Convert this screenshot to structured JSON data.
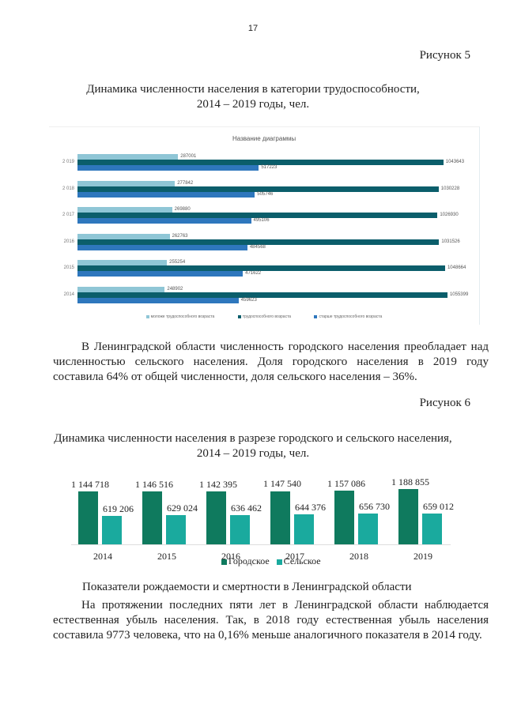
{
  "page_number": "17",
  "figure5": {
    "label": "Рисунок 5",
    "title_line1": "Динамика численности населения в категории трудоспособности,",
    "title_line2": "2014 – 2019 годы, чел."
  },
  "paragraph1": "В Ленинградской области численность городского населения преобладает над численностью сельского населения. Доля городского населения в 2019 году составила 64% от общей численности, доля сельского населения – 36%.",
  "figure6": {
    "label": "Рисунок 6",
    "title_line1": "Динамика численности населения в разрезе городского и сельского населения,",
    "title_line2": "2014 – 2019 годы, чел."
  },
  "section_heading": "Показатели рождаемости и смертности в Ленинградской области",
  "paragraph2": "На протяжении последних пяти лет в Ленинградской области наблюдается естественная убыль населения. Так, в 2018 году естественная убыль населения составила 9773 человека, что на 0,16% меньше аналогичного показателя в 2014 году.",
  "colors": {
    "younger": "#8fc6d6",
    "working": "#0b5e6b",
    "older": "#2e77bd",
    "urban": "#0f7a5e",
    "rural": "#1aaa9e"
  },
  "chart_data": [
    {
      "type": "bar",
      "orientation": "horizontal",
      "title": "Название диаграммы",
      "categories": [
        "2 019",
        "2 018",
        "2 017",
        "2016",
        "2015",
        "2014"
      ],
      "series": [
        {
          "name": "моложе трудоспособного возраста",
          "values": [
            287001,
            277842,
            269880,
            262763,
            255254,
            248902
          ]
        },
        {
          "name": "трудоспособного возраста",
          "values": [
            1043643,
            1030228,
            1026930,
            1031526,
            1048664,
            1055399
          ]
        },
        {
          "name": "старше трудоспособного возраста",
          "values": [
            517223,
            505746,
            495106,
            484568,
            471622,
            459623
          ]
        }
      ],
      "labels": {
        "younger": [
          "287001",
          "277842",
          "269880",
          "262763",
          "255254",
          "248902"
        ],
        "working": [
          "1043643",
          "1030228",
          "1026930",
          "1031526",
          "1048664",
          "1055399"
        ],
        "older": [
          "517223",
          "505746",
          "495106",
          "484568",
          "471622",
          "459623"
        ]
      },
      "legend": [
        "моложе трудоспособного возраста",
        "трудоспособного возраста",
        "старше трудоспособного возраста"
      ],
      "legend_position": "bottom",
      "grid": false
    },
    {
      "type": "bar",
      "orientation": "vertical",
      "title": "",
      "categories": [
        "2014",
        "2015",
        "2016",
        "2017",
        "2018",
        "2019"
      ],
      "series": [
        {
          "name": "Городское",
          "values": [
            1144718,
            1146516,
            1142395,
            1147540,
            1157086,
            1188855
          ]
        },
        {
          "name": "Сельское",
          "values": [
            619206,
            629024,
            636462,
            644376,
            656730,
            659012
          ]
        }
      ],
      "labels": {
        "urban": [
          "1 144 718",
          "1 146 516",
          "1 142 395",
          "1 147 540",
          "1 157 086",
          "1 188 855"
        ],
        "rural": [
          "619 206",
          "629 024",
          "636 462",
          "644 376",
          "656 730",
          "659 012"
        ]
      },
      "legend": [
        "Городское",
        "Сельское"
      ],
      "legend_position": "bottom",
      "grid": false
    }
  ]
}
